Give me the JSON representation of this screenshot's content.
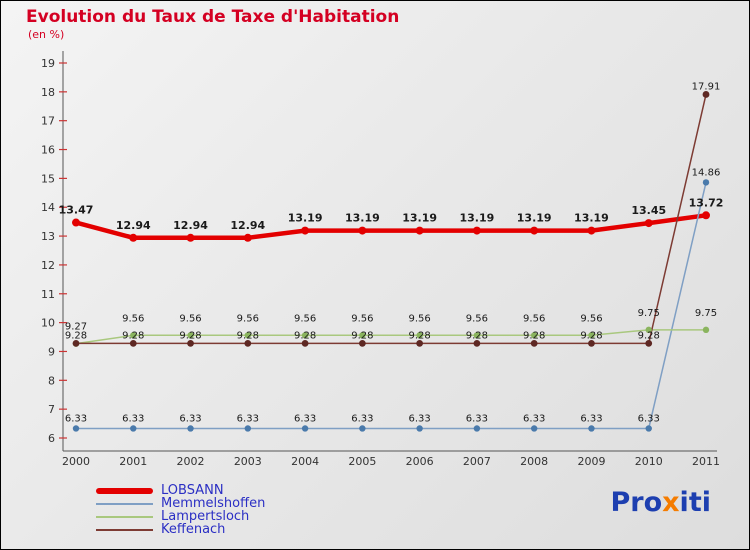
{
  "header": {
    "title": "Evolution du Taux de Taxe d'Habitation",
    "subtitle": "(en %)",
    "color": "#d40022"
  },
  "chart_data": {
    "type": "line",
    "title": "Evolution du Taux de Taxe d'Habitation",
    "subtitle": "(en %)",
    "x": [
      2000,
      2001,
      2002,
      2003,
      2004,
      2005,
      2006,
      2007,
      2008,
      2009,
      2010,
      2011
    ],
    "ylim": [
      6,
      19
    ],
    "ytick_step": 1,
    "grid": false,
    "legend_position": "bottom-left",
    "series": [
      {
        "name": "LOBSANN",
        "color": "#e30000",
        "width": 4.5,
        "point_color": "#e30000",
        "point_radius": 4,
        "label_dy": 9,
        "label_size": 11,
        "label_weight": "bold",
        "values": [
          13.47,
          12.94,
          12.94,
          12.94,
          13.19,
          13.19,
          13.19,
          13.19,
          13.19,
          13.19,
          13.45,
          13.72
        ],
        "labels": [
          "13.47",
          "12.94",
          "12.94",
          "12.94",
          "13.19",
          "13.19",
          "13.19",
          "13.19",
          "13.19",
          "13.19",
          "13.45",
          "13.72"
        ]
      },
      {
        "name": "Memmelshoffen",
        "color": "#7f9fc4",
        "width": 1.5,
        "point_color": "#4a7aab",
        "point_radius": 3.2,
        "label_dy": 7,
        "label_size": 10,
        "label_weight": "normal",
        "values": [
          6.33,
          6.33,
          6.33,
          6.33,
          6.33,
          6.33,
          6.33,
          6.33,
          6.33,
          6.33,
          6.33,
          14.86
        ],
        "labels": [
          "6.33",
          "6.33",
          "6.33",
          "6.33",
          "6.33",
          "6.33",
          "6.33",
          "6.33",
          "6.33",
          "6.33",
          "6.33",
          "14.86"
        ]
      },
      {
        "name": "Lampertsloch",
        "color": "#a9c87e",
        "width": 1.5,
        "point_color": "#8ab45e",
        "point_radius": 3.2,
        "label_dy": 14,
        "label_size": 10,
        "label_weight": "normal",
        "values": [
          9.27,
          9.56,
          9.56,
          9.56,
          9.56,
          9.56,
          9.56,
          9.56,
          9.56,
          9.56,
          9.75,
          9.75
        ],
        "labels": [
          "9.27",
          "9.56",
          "9.56",
          "9.56",
          "9.56",
          "9.56",
          "9.56",
          "9.56",
          "9.56",
          "9.56",
          "9.75",
          "9.75"
        ]
      },
      {
        "name": "Keffenach",
        "color": "#7d3b33",
        "width": 1.5,
        "point_color": "#5e2823",
        "point_radius": 3.4,
        "label_dy": 5,
        "label_size": 10,
        "label_weight": "normal",
        "values": [
          9.28,
          9.28,
          9.28,
          9.28,
          9.28,
          9.28,
          9.28,
          9.28,
          9.28,
          9.28,
          9.28,
          17.91
        ],
        "labels": [
          "9.28",
          "9.28",
          "9.28",
          "9.28",
          "9.28",
          "9.28",
          "9.28",
          "9.28",
          "9.28",
          "9.28",
          "9.28",
          "17.91"
        ]
      }
    ]
  },
  "legend": {
    "text_color": "#2b2fc4",
    "items": [
      {
        "label": "LOBSANN",
        "color": "#e30000",
        "thick": true
      },
      {
        "label": "Memmelshoffen",
        "color": "#7f9fc4",
        "thick": false
      },
      {
        "label": "Lampertsloch",
        "color": "#a9c87e",
        "thick": false
      },
      {
        "label": "Keffenach",
        "color": "#7d3b33",
        "thick": false
      }
    ]
  },
  "logo": {
    "name": "Proxiti",
    "letters": [
      {
        "ch": "P",
        "color": "#1d3fb0"
      },
      {
        "ch": "r",
        "color": "#1d3fb0"
      },
      {
        "ch": "o",
        "color": "#1d3fb0"
      },
      {
        "ch": "x",
        "color": "#f57c00"
      },
      {
        "ch": "i",
        "color": "#1d3fb0"
      },
      {
        "ch": "t",
        "color": "#1d3fb0"
      },
      {
        "ch": "i",
        "color": "#1d3fb0"
      }
    ]
  },
  "axis": {
    "line_color": "#555555",
    "tick_color": "#cc3333",
    "tick_label_color": "#333333",
    "data_label_color": "#1a1a1a"
  }
}
